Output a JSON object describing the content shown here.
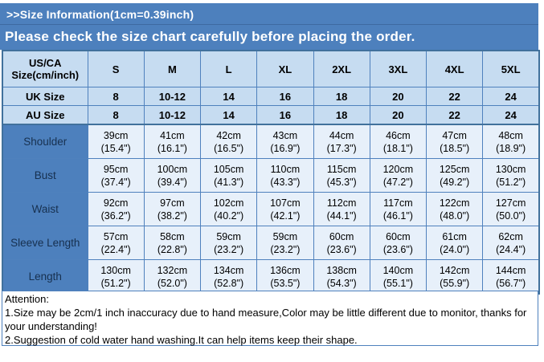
{
  "header": {
    "title": ">>Size Information(1cm=0.39inch)",
    "subtitle": "Please check the size chart carefully before placing the order."
  },
  "size_table": {
    "corner": {
      "line1": "US/CA",
      "line2": "Size(cm/inch)"
    },
    "columns": [
      "S",
      "M",
      "L",
      "XL",
      "2XL",
      "3XL",
      "4XL",
      "5XL"
    ],
    "size_rows": [
      {
        "label": "UK Size",
        "values": [
          "8",
          "10-12",
          "14",
          "16",
          "18",
          "20",
          "22",
          "24"
        ]
      },
      {
        "label": "AU Size",
        "values": [
          "8",
          "10-12",
          "14",
          "16",
          "18",
          "20",
          "22",
          "24"
        ]
      }
    ],
    "measurement_rows": [
      {
        "label": "Shoulder",
        "cells": [
          {
            "cm": "39cm",
            "in": "(15.4\")"
          },
          {
            "cm": "41cm",
            "in": "(16.1\")"
          },
          {
            "cm": "42cm",
            "in": "(16.5\")"
          },
          {
            "cm": "43cm",
            "in": "(16.9\")"
          },
          {
            "cm": "44cm",
            "in": "(17.3\")"
          },
          {
            "cm": "46cm",
            "in": "(18.1\")"
          },
          {
            "cm": "47cm",
            "in": "(18.5\")"
          },
          {
            "cm": "48cm",
            "in": "(18.9\")"
          }
        ]
      },
      {
        "label": "Bust",
        "cells": [
          {
            "cm": "95cm",
            "in": "(37.4\")"
          },
          {
            "cm": "100cm",
            "in": "(39.4\")"
          },
          {
            "cm": "105cm",
            "in": "(41.3\")"
          },
          {
            "cm": "110cm",
            "in": "(43.3\")"
          },
          {
            "cm": "115cm",
            "in": "(45.3\")"
          },
          {
            "cm": "120cm",
            "in": "(47.2\")"
          },
          {
            "cm": "125cm",
            "in": "(49.2\")"
          },
          {
            "cm": "130cm",
            "in": "(51.2\")"
          }
        ]
      },
      {
        "label": "Waist",
        "cells": [
          {
            "cm": "92cm",
            "in": "(36.2\")"
          },
          {
            "cm": "97cm",
            "in": "(38.2\")"
          },
          {
            "cm": "102cm",
            "in": "(40.2\")"
          },
          {
            "cm": "107cm",
            "in": "(42.1\")"
          },
          {
            "cm": "112cm",
            "in": "(44.1\")"
          },
          {
            "cm": "117cm",
            "in": "(46.1\")"
          },
          {
            "cm": "122cm",
            "in": "(48.0\")"
          },
          {
            "cm": "127cm",
            "in": "(50.0\")"
          }
        ]
      },
      {
        "label": "Sleeve Length",
        "cells": [
          {
            "cm": "57cm",
            "in": "(22.4\")"
          },
          {
            "cm": "58cm",
            "in": "(22.8\")"
          },
          {
            "cm": "59cm",
            "in": "(23.2\")"
          },
          {
            "cm": "59cm",
            "in": "(23.2\")"
          },
          {
            "cm": "60cm",
            "in": "(23.6\")"
          },
          {
            "cm": "60cm",
            "in": "(23.6\")"
          },
          {
            "cm": "61cm",
            "in": "(24.0\")"
          },
          {
            "cm": "62cm",
            "in": "(24.4\")"
          }
        ]
      },
      {
        "label": "Length",
        "cells": [
          {
            "cm": "130cm",
            "in": "(51.2\")"
          },
          {
            "cm": "132cm",
            "in": "(52.0\")"
          },
          {
            "cm": "134cm",
            "in": "(52.8\")"
          },
          {
            "cm": "136cm",
            "in": "(53.5\")"
          },
          {
            "cm": "138cm",
            "in": "(54.3\")"
          },
          {
            "cm": "140cm",
            "in": "(55.1\")"
          },
          {
            "cm": "142cm",
            "in": "(55.9\")"
          },
          {
            "cm": "144cm",
            "in": "(56.7\")"
          }
        ]
      }
    ]
  },
  "attention": {
    "heading": "Attention:",
    "notes": [
      "1.Size may be 2cm/1 inch inaccuracy due to hand measure,Color may be little different due to monitor, thanks for your understanding!",
      "2.Suggestion of cold water hand washing.It can help items keep their shape."
    ]
  },
  "colors": {
    "banner_blue": "#4d80bd",
    "header_cell_blue": "#c6dcf1",
    "data_cell_blue": "#e7f0fa",
    "border_blue": "#4f81bd",
    "text_black": "#000000",
    "text_white": "#ffffff"
  }
}
